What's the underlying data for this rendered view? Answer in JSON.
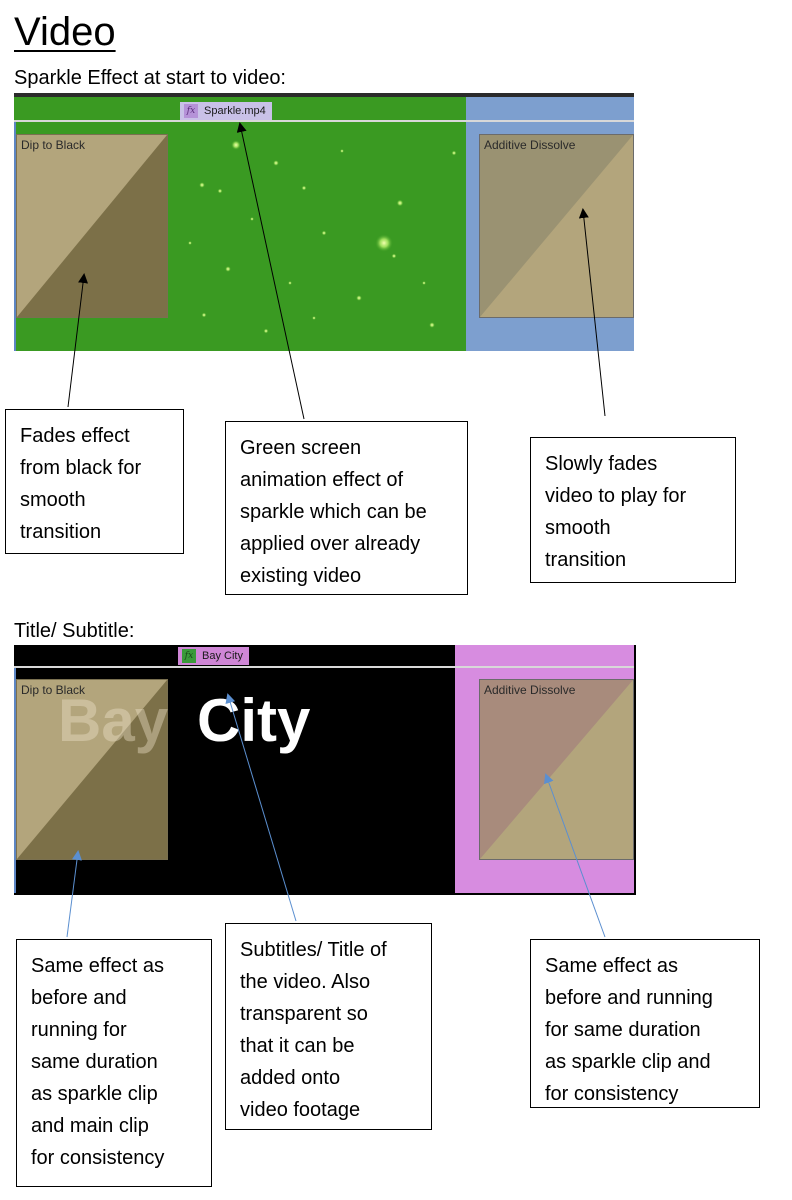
{
  "page": {
    "title": "Video"
  },
  "section1": {
    "heading": "Sparkle Effect at start to video:",
    "clip": {
      "fx_icon": "fx",
      "name": "Sparkle.mp4"
    },
    "transitions": {
      "left": "Dip to Black",
      "right": "Additive Dissolve"
    },
    "callouts": {
      "left": "Fades effect\nfrom black for\nsmooth\ntransition",
      "middle": "Green screen\nanimation effect of\nsparkle which can be\napplied over already\nexisting video",
      "right": "Slowly fades\nvideo to play for\nsmooth\ntransition"
    },
    "colors": {
      "green_screen": "#3a9a22",
      "track_blue": "#7d9fcf",
      "transition_fill": "#b3a57c"
    }
  },
  "section2": {
    "heading": "Title/ Subtitle:",
    "clip": {
      "fx_icon": "fx",
      "name": "Bay City"
    },
    "title_overlay": {
      "faded": "Bay",
      "bright": "City"
    },
    "transitions": {
      "left": "Dip to Black",
      "right": "Additive Dissolve"
    },
    "callouts": {
      "left": "Same effect as\nbefore and\nrunning for\nsame duration\nas sparkle clip\nand main clip\nfor consistency",
      "middle": "Subtitles/ Title of\nthe video. Also\ntransparent so\nthat it can be\nadded onto\nvideo footage",
      "right": "Same effect as\nbefore and running\nfor same duration\nas sparkle clip and\nfor consistency"
    },
    "colors": {
      "track_pink": "#d78ce0",
      "clip_label": "#cf86d6",
      "background": "#000000"
    }
  }
}
